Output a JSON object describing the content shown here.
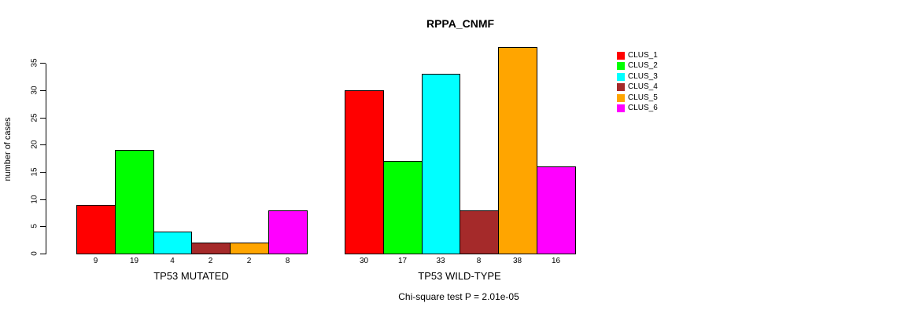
{
  "title": "RPPA_CNMF",
  "chart_data": {
    "type": "bar",
    "title": "RPPA_CNMF",
    "xlabel": "",
    "ylabel": "number of cases",
    "ylim": [
      0,
      38
    ],
    "yticks": [
      0,
      5,
      10,
      15,
      20,
      25,
      30,
      35
    ],
    "grid": false,
    "legend_position": "right",
    "categories": [
      "CLUS_1",
      "CLUS_2",
      "CLUS_3",
      "CLUS_4",
      "CLUS_5",
      "CLUS_6"
    ],
    "groups": [
      {
        "label": "TP53 MUTATED",
        "values": [
          9,
          19,
          4,
          2,
          2,
          8
        ]
      },
      {
        "label": "TP53 WILD-TYPE",
        "values": [
          30,
          17,
          33,
          8,
          38,
          16
        ]
      }
    ],
    "bar_colors": [
      "#FF0000",
      "#00FF00",
      "#00FFFF",
      "#A52A2A",
      "#FFA500",
      "#FF00FF"
    ],
    "legend": [
      {
        "label": "CLUS_1",
        "color": "#FF0000"
      },
      {
        "label": "CLUS_2",
        "color": "#00FF00"
      },
      {
        "label": "CLUS_3",
        "color": "#00FFFF"
      },
      {
        "label": "CLUS_4",
        "color": "#A52A2A"
      },
      {
        "label": "CLUS_5",
        "color": "#FFA500"
      },
      {
        "label": "CLUS_6",
        "color": "#FF00FF"
      }
    ],
    "annotation": "Chi-square test P = 2.01e-05"
  }
}
